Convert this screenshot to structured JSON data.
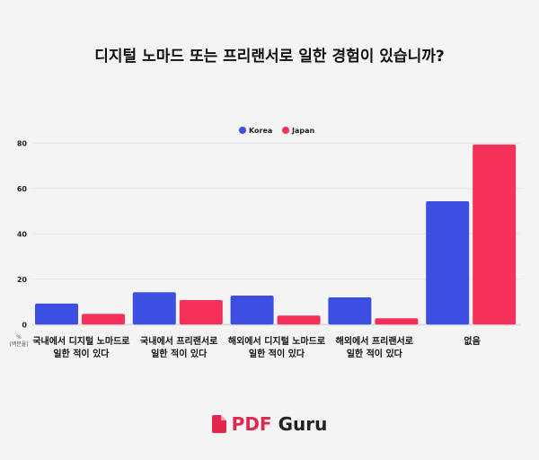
{
  "chart_data": {
    "type": "bar",
    "title": "디지털 노마드 또는 프리랜서로 일한 경험이 있습니까?",
    "categories": [
      [
        "국내에서 디지털 노마드로",
        "일한 적이 있다"
      ],
      [
        "국내에서 프리랜서로",
        "일한 적이 있다"
      ],
      [
        "해외에서 디지털 노마드로",
        "일한 적이 있다"
      ],
      [
        "해외에서 프리랜서로",
        "일한 적이 있다"
      ],
      [
        "없음"
      ]
    ],
    "series": [
      {
        "name": "Korea",
        "color": "#3d4ee3",
        "values": [
          9.3,
          14.3,
          12.8,
          12.0,
          54.4
        ]
      },
      {
        "name": "Japan",
        "color": "#f5315a",
        "values": [
          4.7,
          10.8,
          4.0,
          2.8,
          79.4
        ]
      }
    ],
    "ylabel": [
      "%",
      "(백분율)"
    ],
    "ylim": [
      0,
      80
    ],
    "yticks": [
      0,
      20,
      40,
      60,
      80
    ],
    "grid": true,
    "legend": "top-center"
  },
  "logo": {
    "brand": "PDF",
    "brand2": "Guru",
    "color": "#e0284f"
  }
}
